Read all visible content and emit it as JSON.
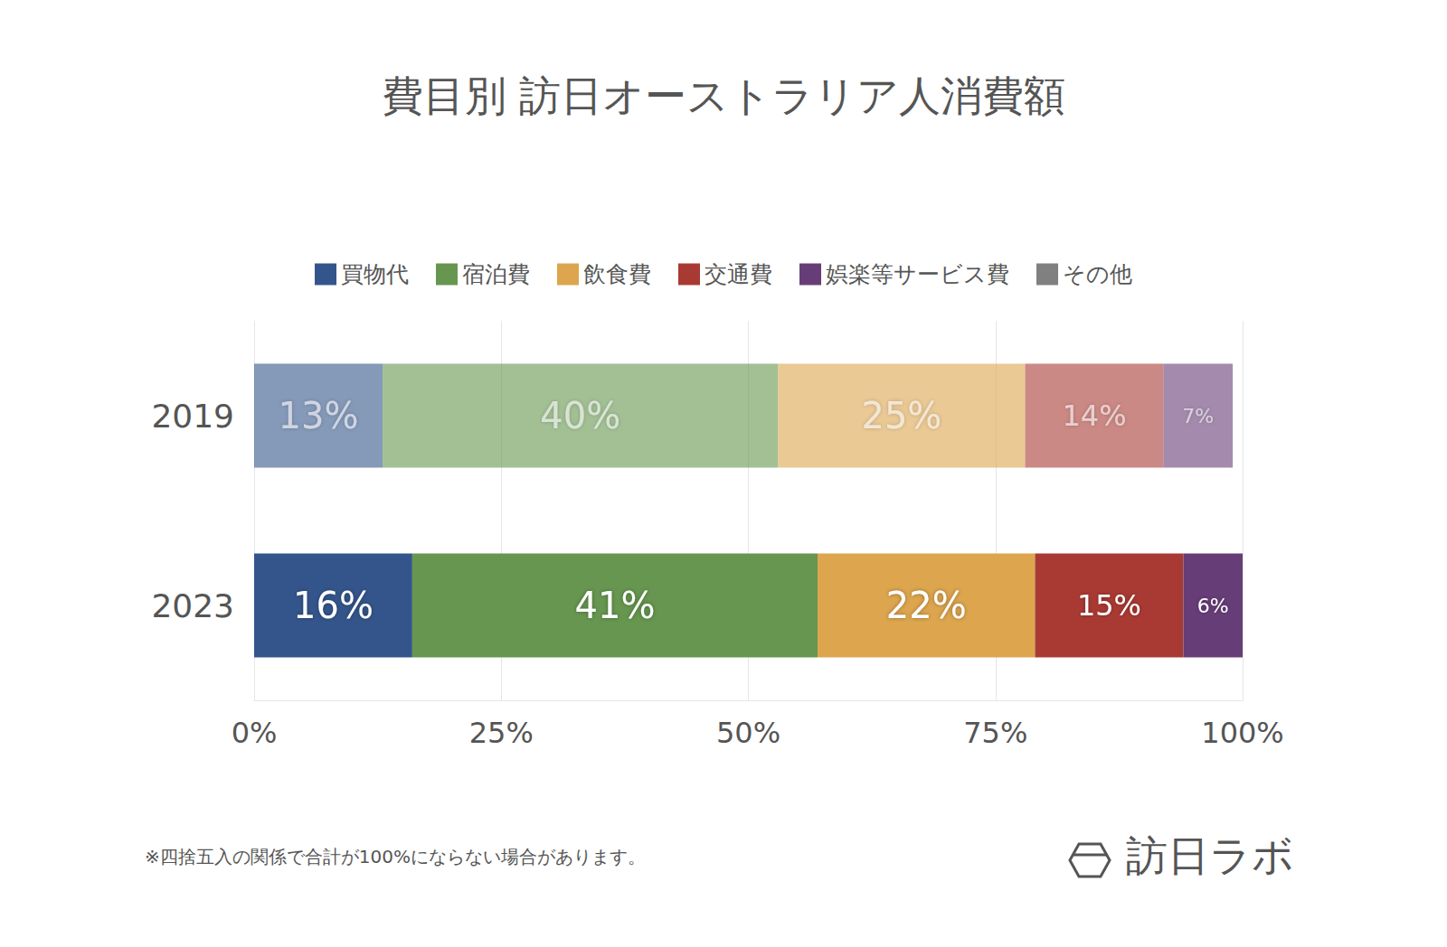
{
  "chart_data": {
    "type": "bar",
    "title": "費目別 訪日オーストラリア人消費額",
    "orientation": "horizontal",
    "stacked": true,
    "data_labels": true,
    "grid": true,
    "legend": "top",
    "categories": [
      "2019",
      "2023"
    ],
    "series": [
      {
        "name": "買物代",
        "color": "#34558b",
        "values": [
          13,
          16
        ],
        "value_labels": [
          "13%",
          "16%"
        ]
      },
      {
        "name": "宿泊費",
        "color": "#66964f",
        "values": [
          40,
          41
        ],
        "value_labels": [
          "40%",
          "41%"
        ]
      },
      {
        "name": "飲食費",
        "color": "#dca54e",
        "values": [
          25,
          22
        ],
        "value_labels": [
          "25%",
          "22%"
        ]
      },
      {
        "name": "交通費",
        "color": "#a93a33",
        "values": [
          14,
          15
        ],
        "value_labels": [
          "14%",
          "15%"
        ]
      },
      {
        "name": "娯楽等サービス費",
        "color": "#673d78",
        "values": [
          7,
          6
        ],
        "value_labels": [
          "7%",
          "6%"
        ]
      },
      {
        "name": "その他",
        "color": "#808080",
        "values": [
          null,
          null
        ]
      }
    ],
    "xlim": [
      0,
      100
    ],
    "xticks": [
      {
        "value": 0,
        "label": "0%"
      },
      {
        "value": 25,
        "label": "25%"
      },
      {
        "value": 50,
        "label": "50%"
      },
      {
        "value": 75,
        "label": "75%"
      },
      {
        "value": 100,
        "label": "100%"
      }
    ],
    "annotations": [
      "※四捨五入の関係で合計が100%にならない場合があります。",
      "訪日ラボ"
    ]
  }
}
